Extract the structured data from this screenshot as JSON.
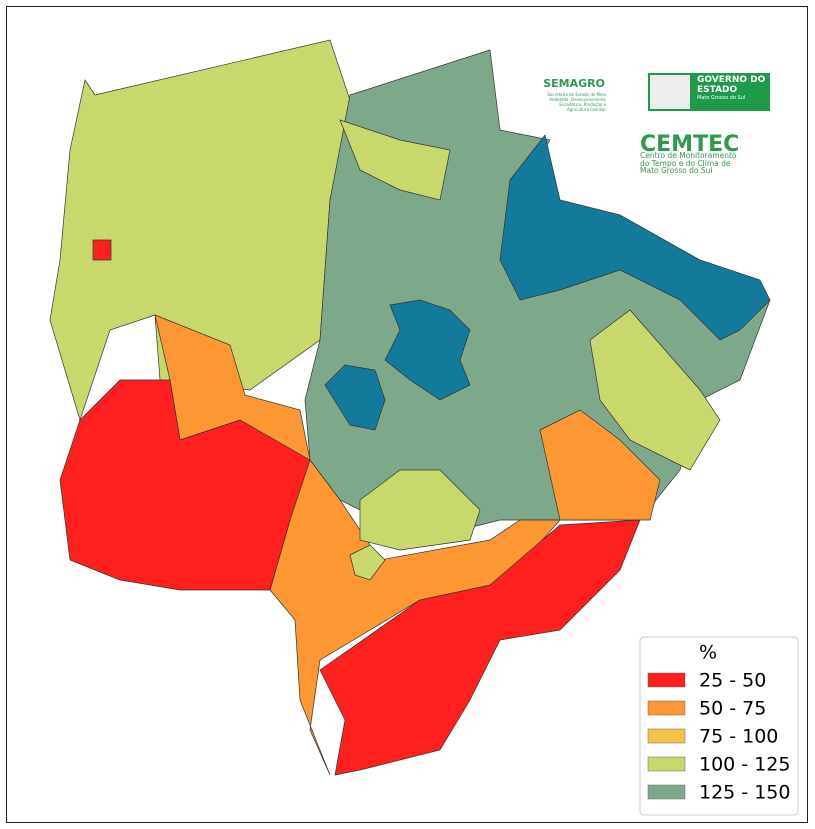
{
  "logos": {
    "semagro": "SEMAGRO",
    "semagro_subtitle": "Secretaria de Estado de Meio Ambiente, Desenvolvimento Econômico, Produção e Agricultura Familiar",
    "governo": "GOVERNO DO ESTADO",
    "governo_state": "Mato Grosso do Sul",
    "cemtec": "CEMTEC",
    "cemtec_subtitle": "Centro de Monitoramento do Tempo e do Clima de Mato Grosso do Sul"
  },
  "legend": {
    "title": "%",
    "items": [
      {
        "label": "25 - 50",
        "color": "#fe1f1f"
      },
      {
        "label": "50 - 75",
        "color": "#fd9734"
      },
      {
        "label": "75 - 100",
        "color": "#f4c347"
      },
      {
        "label": "100 - 125",
        "color": "#c9d86c"
      },
      {
        "label": "125 - 150",
        "color": "#7da88a"
      }
    ]
  }
}
